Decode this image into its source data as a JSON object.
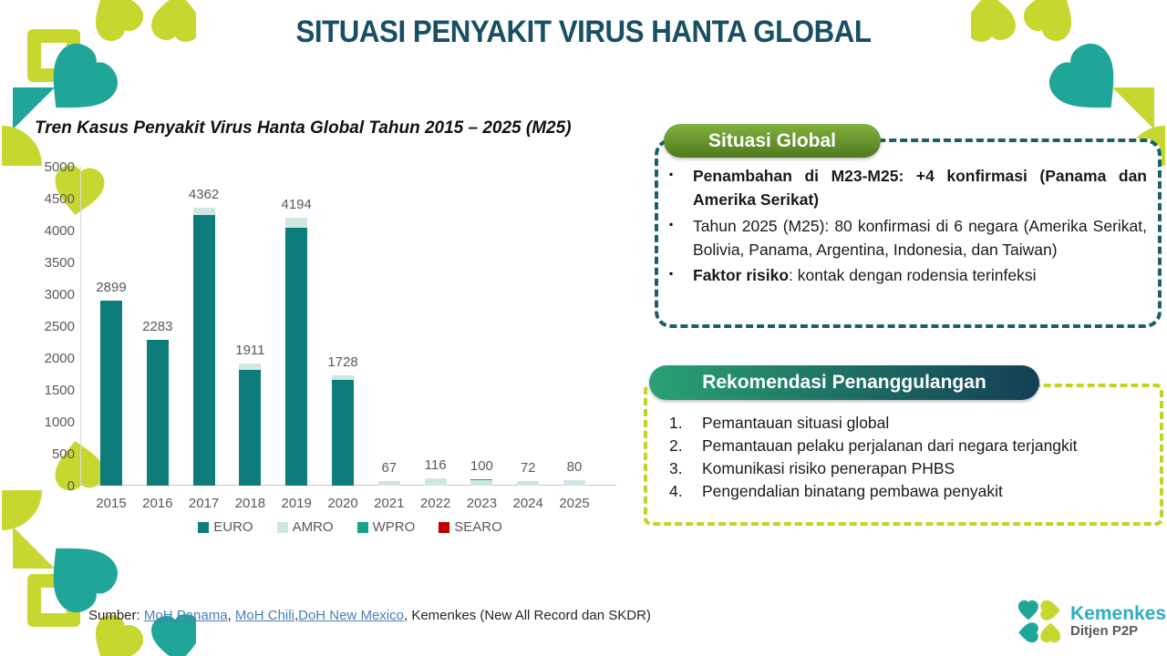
{
  "slide": {
    "title": "SITUASI PENYAKIT VIRUS HANTA GLOBAL"
  },
  "chart_data": {
    "type": "bar",
    "stacked": true,
    "title": "Tren Kasus Penyakit Virus Hanta Global Tahun 2015 – 2025 (M25)",
    "categories": [
      "2015",
      "2016",
      "2017",
      "2018",
      "2019",
      "2020",
      "2021",
      "2022",
      "2023",
      "2024",
      "2025"
    ],
    "totals": [
      2899,
      2283,
      4362,
      1911,
      4194,
      1728,
      67,
      116,
      100,
      72,
      80
    ],
    "series": [
      {
        "name": "EURO",
        "color": "#0e7c7a",
        "values": [
          2899,
          2283,
          4250,
          1820,
          4040,
          1655,
          0,
          0,
          0,
          0,
          0
        ]
      },
      {
        "name": "AMRO",
        "color": "#cfe6e1",
        "values": [
          0,
          0,
          112,
          91,
          154,
          73,
          67,
          116,
          85,
          72,
          80
        ]
      },
      {
        "name": "WPRO",
        "color": "#17a389",
        "values": [
          0,
          0,
          0,
          0,
          0,
          0,
          0,
          0,
          15,
          0,
          0
        ]
      },
      {
        "name": "SEARO",
        "color": "#c00000",
        "values": [
          0,
          0,
          0,
          0,
          0,
          0,
          0,
          0,
          0,
          0,
          0
        ]
      }
    ],
    "ylim": [
      0,
      5000
    ],
    "ytick_step": 500,
    "xlabel": "",
    "ylabel": "",
    "grid": false,
    "legend_position": "bottom"
  },
  "situasi_global": {
    "header": "Situasi Global",
    "bullets": [
      {
        "segments": [
          {
            "text": "Penambahan di M23-M25: +4 konfirmasi (Panama dan Amerika Serikat)",
            "bold": true
          }
        ]
      },
      {
        "segments": [
          {
            "text": "Tahun 2025 (M25): 80 konfirmasi di 6 negara (Amerika Serikat, Bolivia, Panama, Argentina, Indonesia, dan Taiwan)",
            "bold": false
          }
        ]
      },
      {
        "segments": [
          {
            "text": "Faktor risiko",
            "bold": true
          },
          {
            "text": ": kontak dengan rodensia terinfeksi",
            "bold": false
          }
        ]
      }
    ]
  },
  "rekomendasi": {
    "header": "Rekomendasi Penanggulangan",
    "items": [
      "Pemantauan situasi global",
      "Pemantauan pelaku perjalanan dari negara terjangkit",
      "Komunikasi risiko penerapan PHBS",
      "Pengendalian binatang pembawa penyakit"
    ]
  },
  "footer": {
    "source_parts": [
      {
        "text": "Sumber: ",
        "link": false
      },
      {
        "text": "MoH Panama",
        "link": true
      },
      {
        "text": ", ",
        "link": false
      },
      {
        "text": "MoH Chili",
        "link": true
      },
      {
        "text": ",",
        "link": false
      },
      {
        "text": "DoH New Mexico",
        "link": true
      },
      {
        "text": ", Kemenkes (New All Record dan SKDR)",
        "link": false
      }
    ],
    "logo_brand": "Kemenkes",
    "logo_sub": "Ditjen P2P"
  },
  "colors": {
    "title": "#184f63",
    "pill_green_top": "#82b13d",
    "pill_green_bottom": "#4e7a1e",
    "pill_teal_left": "#2aa173",
    "pill_teal_right": "#133f55",
    "dash_teal": "#1b5f68",
    "dash_lime": "#c3d324",
    "brand_teal": "#1fa698",
    "brand_lime": "#c6d830",
    "link_blue": "#4a7ebb"
  }
}
